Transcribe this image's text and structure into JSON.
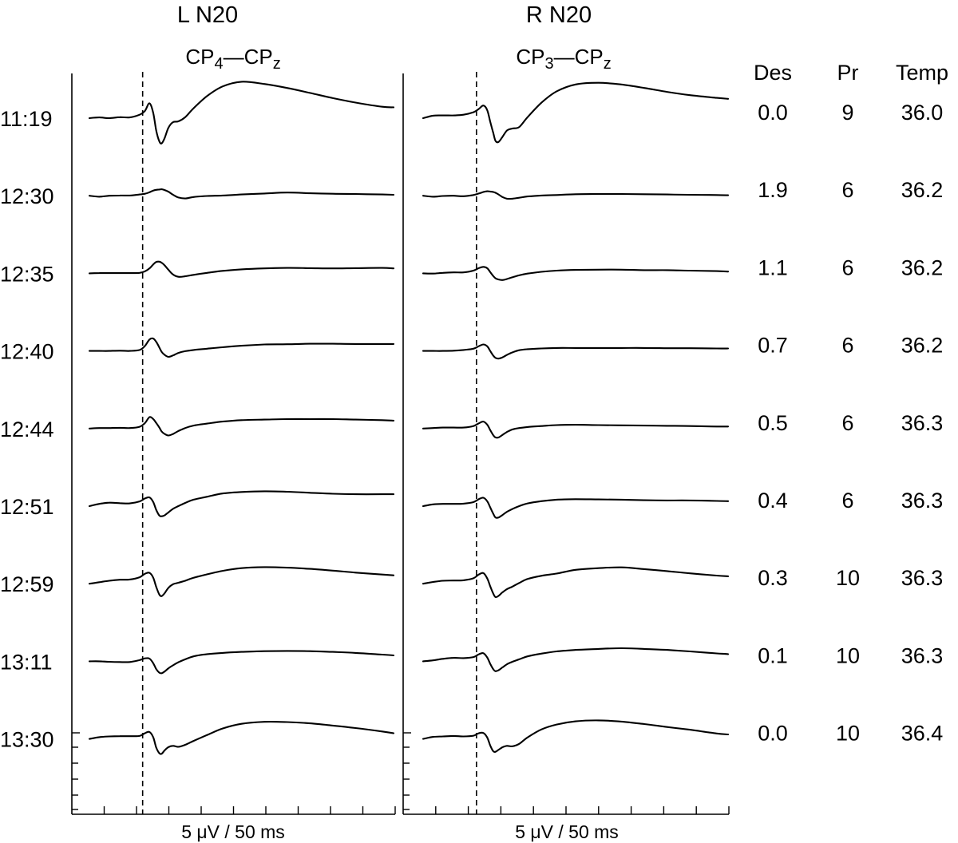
{
  "chart_data": {
    "type": "line",
    "panels": [
      {
        "title": "L N20",
        "subtitle_parts": [
          "CP",
          "4",
          "—CP",
          "z"
        ],
        "scale_label": "5 μV / 50 ms"
      },
      {
        "title": "R N20",
        "subtitle_parts": [
          "CP",
          "3",
          "—CP",
          "z"
        ],
        "scale_label": "5 μV / 50 ms"
      }
    ],
    "columns": [
      "Des",
      "Pr",
      "Temp"
    ],
    "rows": [
      {
        "time": "11:19",
        "des": "0.0",
        "pr": "9",
        "temp": "36.0"
      },
      {
        "time": "12:30",
        "des": "1.9",
        "pr": "6",
        "temp": "36.2"
      },
      {
        "time": "12:35",
        "des": "1.1",
        "pr": "6",
        "temp": "36.2"
      },
      {
        "time": "12:40",
        "des": "0.7",
        "pr": "6",
        "temp": "36.2"
      },
      {
        "time": "12:44",
        "des": "0.5",
        "pr": "6",
        "temp": "36.3"
      },
      {
        "time": "12:51",
        "des": "0.4",
        "pr": "6",
        "temp": "36.3"
      },
      {
        "time": "12:59",
        "des": "0.3",
        "pr": "10",
        "temp": "36.3"
      },
      {
        "time": "13:11",
        "des": "0.1",
        "pr": "10",
        "temp": "36.3"
      },
      {
        "time": "13:30",
        "des": "0.0",
        "pr": "10",
        "temp": "36.4"
      }
    ],
    "traces": {
      "x_ms": [
        0,
        13,
        26,
        40,
        53,
        66,
        73,
        79,
        84,
        88,
        92,
        95,
        99,
        104,
        110,
        117,
        126,
        137,
        155,
        175,
        200,
        230,
        260,
        290,
        320,
        350,
        385,
        400
      ],
      "left": [
        [
          0,
          0.3,
          0.0,
          0.4,
          0.3,
          1.4,
          2.9,
          6.0,
          2.0,
          -5.2,
          -9.4,
          -10.2,
          -8.0,
          -3.8,
          -1.6,
          -1.3,
          0.4,
          4.0,
          9.0,
          12.8,
          14.7,
          13.8,
          12.2,
          10.2,
          8.1,
          6.3,
          4.6,
          4.4
        ],
        [
          0,
          -0.4,
          0.0,
          0.1,
          0.1,
          0.5,
          0.8,
          1.4,
          2.1,
          2.4,
          2.5,
          2.6,
          2.3,
          1.6,
          0.4,
          -0.7,
          -1.1,
          -0.5,
          -0.1,
          0.1,
          0.5,
          0.9,
          1.3,
          1.0,
          0.8,
          0.7,
          0.5,
          0.4
        ],
        [
          0,
          0.1,
          0.1,
          0.1,
          0.1,
          0.2,
          0.8,
          2.0,
          3.6,
          4.6,
          4.7,
          4.3,
          3.2,
          1.4,
          -0.5,
          -1.4,
          -1.2,
          -0.6,
          0.2,
          1.0,
          1.6,
          2.0,
          2.2,
          2.1,
          2.0,
          2.1,
          2.2,
          2.0
        ],
        [
          0,
          0.0,
          0.0,
          0.1,
          0.0,
          0.4,
          2.0,
          4.6,
          5.0,
          3.6,
          1.4,
          -0.4,
          -1.6,
          -2.4,
          -1.8,
          -0.8,
          -0.1,
          0.4,
          0.9,
          1.5,
          2.1,
          2.6,
          2.7,
          2.9,
          2.9,
          2.8,
          2.8,
          2.8
        ],
        [
          0,
          0.2,
          0.2,
          0.3,
          0.2,
          0.7,
          2.2,
          4.6,
          3.8,
          2.2,
          0.4,
          -1.2,
          -2.2,
          -2.8,
          -2.2,
          -1.0,
          0.2,
          1.2,
          2.0,
          2.8,
          3.4,
          3.6,
          3.8,
          3.8,
          3.8,
          3.6,
          3.4,
          3.2
        ],
        [
          0,
          0.9,
          1.4,
          1.2,
          1.1,
          1.9,
          3.1,
          3.5,
          1.6,
          -1.6,
          -3.8,
          -4.1,
          -3.7,
          -2.5,
          -1.1,
          0.0,
          1.3,
          2.6,
          3.8,
          5.1,
          5.7,
          6.0,
          5.8,
          5.4,
          5.0,
          4.8,
          4.8,
          4.8
        ],
        [
          0,
          0.6,
          1.2,
          1.6,
          1.7,
          2.6,
          4.0,
          4.4,
          2.4,
          -1.4,
          -4.4,
          -5.0,
          -3.8,
          -1.6,
          -0.2,
          0.4,
          1.2,
          2.4,
          3.8,
          5.2,
          6.3,
          6.7,
          6.5,
          6.0,
          5.3,
          4.5,
          3.7,
          3.4
        ],
        [
          0,
          0.0,
          -0.2,
          -0.3,
          -0.3,
          0.5,
          1.2,
          1.1,
          -0.8,
          -3.2,
          -4.6,
          -4.8,
          -4.1,
          -2.8,
          -1.6,
          -0.4,
          0.8,
          2.0,
          2.9,
          3.4,
          3.8,
          4.1,
          4.2,
          4.1,
          3.8,
          3.4,
          2.7,
          2.4
        ],
        [
          0,
          0.7,
          1.0,
          1.1,
          1.1,
          1.2,
          2.3,
          2.8,
          0.6,
          -3.6,
          -5.8,
          -6.0,
          -4.6,
          -3.3,
          -2.8,
          -3.2,
          -2.4,
          -0.8,
          1.6,
          4.2,
          6.1,
          6.9,
          6.8,
          6.3,
          5.4,
          4.4,
          3.0,
          2.3
        ]
      ],
      "right": [
        [
          0,
          1.0,
          1.1,
          1.1,
          1.4,
          2.4,
          3.7,
          5.1,
          3.3,
          -1.4,
          -6.0,
          -9.2,
          -9.6,
          -7.6,
          -5.0,
          -4.2,
          -3.6,
          0.4,
          6.2,
          10.8,
          13.6,
          14.3,
          13.6,
          12.2,
          10.6,
          9.3,
          8.2,
          7.8
        ],
        [
          0,
          -0.4,
          -0.1,
          0.0,
          -0.2,
          0.3,
          0.9,
          1.5,
          1.8,
          1.7,
          1.5,
          1.2,
          0.5,
          -0.5,
          -1.2,
          -1.2,
          -0.8,
          -0.3,
          0.1,
          0.3,
          0.6,
          0.7,
          0.7,
          0.6,
          0.5,
          0.4,
          0.3,
          0.2
        ],
        [
          0,
          -0.1,
          0.2,
          0.4,
          0.4,
          1.1,
          2.1,
          2.6,
          2.1,
          0.5,
          -1.1,
          -2.0,
          -2.5,
          -2.7,
          -2.3,
          -1.6,
          -0.8,
          -0.1,
          0.6,
          1.1,
          1.4,
          1.5,
          1.5,
          1.3,
          1.3,
          1.1,
          0.9,
          0.7
        ],
        [
          0,
          0.0,
          0.0,
          0.1,
          0.4,
          0.9,
          1.9,
          2.6,
          1.9,
          0.0,
          -1.9,
          -2.8,
          -3.1,
          -2.6,
          -1.6,
          -0.6,
          0.3,
          0.7,
          1.0,
          1.2,
          1.2,
          1.2,
          1.2,
          1.2,
          1.1,
          1.1,
          1.0,
          1.0
        ],
        [
          0,
          0.2,
          0.4,
          0.4,
          0.4,
          1.0,
          2.1,
          2.8,
          1.6,
          -0.6,
          -2.7,
          -3.6,
          -3.6,
          -2.6,
          -1.4,
          -0.4,
          0.2,
          0.6,
          1.0,
          1.4,
          1.5,
          1.4,
          1.3,
          1.2,
          1.1,
          1.0,
          0.8,
          0.8
        ],
        [
          0,
          0.7,
          0.9,
          0.9,
          1.0,
          1.6,
          2.8,
          3.4,
          2.0,
          -0.5,
          -3.1,
          -4.6,
          -4.6,
          -3.6,
          -2.3,
          -1.2,
          0.0,
          1.1,
          2.0,
          2.6,
          2.8,
          2.7,
          2.6,
          2.4,
          2.3,
          2.3,
          2.1,
          2.0
        ],
        [
          0,
          0.7,
          1.2,
          1.3,
          1.4,
          2.2,
          3.7,
          4.3,
          2.2,
          -1.0,
          -4.0,
          -5.4,
          -4.9,
          -3.5,
          -2.2,
          -1.2,
          0.3,
          1.9,
          3.2,
          4.1,
          5.6,
          6.3,
          6.6,
          5.9,
          5.1,
          4.2,
          3.3,
          3.0
        ],
        [
          0,
          0.4,
          1.0,
          1.4,
          1.3,
          1.7,
          2.8,
          3.3,
          1.6,
          -1.0,
          -3.2,
          -4.0,
          -3.6,
          -2.5,
          -1.2,
          -0.2,
          0.8,
          2.0,
          3.1,
          4.0,
          4.6,
          5.0,
          5.3,
          5.0,
          4.6,
          4.0,
          3.2,
          2.9
        ],
        [
          0,
          0.8,
          1.0,
          1.2,
          1.0,
          1.3,
          2.3,
          2.4,
          0.6,
          -2.6,
          -5.0,
          -5.2,
          -4.4,
          -3.4,
          -2.8,
          -3.0,
          -2.0,
          0.6,
          3.8,
          5.8,
          7.1,
          7.5,
          7.0,
          6.0,
          4.8,
          3.7,
          2.2,
          1.8
        ]
      ]
    },
    "stimulus_marker_ms": 70
  }
}
